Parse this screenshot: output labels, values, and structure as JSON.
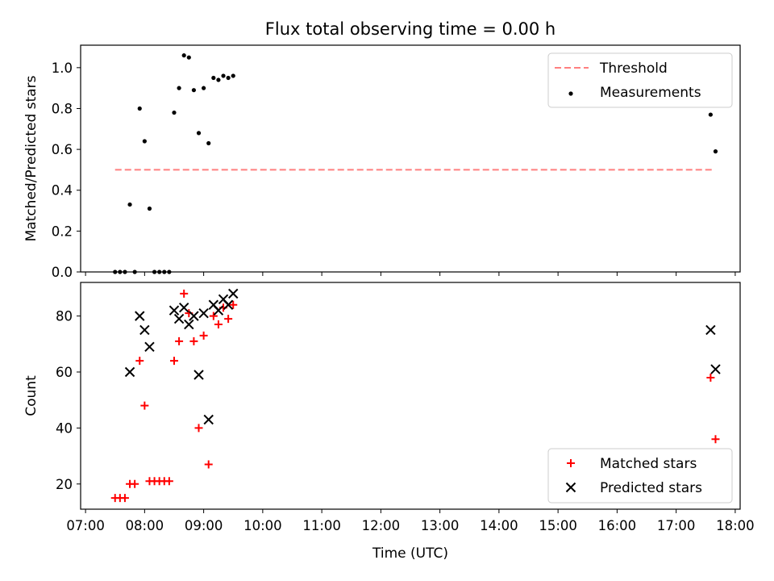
{
  "figure": {
    "title": "Flux total observing time = 0.00 h"
  },
  "chart_data": [
    {
      "type": "scatter",
      "title": "Flux total observing time = 0.00 h",
      "xlabel": "",
      "ylabel": "Matched/Predicted stars",
      "xlim": [
        "06:55",
        "18:05"
      ],
      "ylim": [
        0,
        1.11
      ],
      "yticks": [
        0.0,
        0.2,
        0.4,
        0.6,
        0.8,
        1.0
      ],
      "ytick_labels": [
        "0.0",
        "0.2",
        "0.4",
        "0.6",
        "0.8",
        "1.0"
      ],
      "legend_position": "top-right",
      "legend": [
        "Threshold",
        "Measurements"
      ],
      "threshold": {
        "name": "Threshold",
        "y": 0.5,
        "x_start": "07:30",
        "x_end": "17:38",
        "color": "#ff7f7f",
        "style": "dashed"
      },
      "series": [
        {
          "name": "Measurements",
          "marker": "dot",
          "color": "#000000",
          "points": [
            {
              "x": "07:30",
              "y": 0.0
            },
            {
              "x": "07:35",
              "y": 0.0
            },
            {
              "x": "07:40",
              "y": 0.0
            },
            {
              "x": "07:45",
              "y": 0.33
            },
            {
              "x": "07:50",
              "y": 0.0
            },
            {
              "x": "07:55",
              "y": 0.8
            },
            {
              "x": "08:00",
              "y": 0.64
            },
            {
              "x": "08:05",
              "y": 0.31
            },
            {
              "x": "08:10",
              "y": 0.0
            },
            {
              "x": "08:15",
              "y": 0.0
            },
            {
              "x": "08:20",
              "y": 0.0
            },
            {
              "x": "08:25",
              "y": 0.0
            },
            {
              "x": "08:30",
              "y": 0.78
            },
            {
              "x": "08:35",
              "y": 0.9
            },
            {
              "x": "08:40",
              "y": 1.06
            },
            {
              "x": "08:45",
              "y": 1.05
            },
            {
              "x": "08:50",
              "y": 0.89
            },
            {
              "x": "08:55",
              "y": 0.68
            },
            {
              "x": "09:00",
              "y": 0.9
            },
            {
              "x": "09:05",
              "y": 0.63
            },
            {
              "x": "09:10",
              "y": 0.95
            },
            {
              "x": "09:15",
              "y": 0.94
            },
            {
              "x": "09:20",
              "y": 0.96
            },
            {
              "x": "09:25",
              "y": 0.95
            },
            {
              "x": "09:30",
              "y": 0.96
            },
            {
              "x": "17:35",
              "y": 0.77
            },
            {
              "x": "17:40",
              "y": 0.59
            }
          ]
        }
      ]
    },
    {
      "type": "scatter",
      "title": "",
      "xlabel": "Time (UTC)",
      "ylabel": "Count",
      "xlim": [
        "06:55",
        "18:05"
      ],
      "ylim": [
        11,
        92
      ],
      "xticks": [
        "07:00",
        "08:00",
        "09:00",
        "10:00",
        "11:00",
        "12:00",
        "13:00",
        "14:00",
        "15:00",
        "16:00",
        "17:00",
        "18:00"
      ],
      "yticks": [
        20,
        40,
        60,
        80
      ],
      "ytick_labels": [
        "20",
        "40",
        "60",
        "80"
      ],
      "legend_position": "bottom-right",
      "legend": [
        "Matched stars",
        "Predicted stars"
      ],
      "series": [
        {
          "name": "Matched stars",
          "marker": "plus",
          "color": "#ff0000",
          "points": [
            {
              "x": "07:30",
              "y": 15
            },
            {
              "x": "07:35",
              "y": 15
            },
            {
              "x": "07:40",
              "y": 15
            },
            {
              "x": "07:45",
              "y": 20
            },
            {
              "x": "07:50",
              "y": 20
            },
            {
              "x": "07:55",
              "y": 64
            },
            {
              "x": "08:00",
              "y": 48
            },
            {
              "x": "08:05",
              "y": 21
            },
            {
              "x": "08:10",
              "y": 21
            },
            {
              "x": "08:15",
              "y": 21
            },
            {
              "x": "08:20",
              "y": 21
            },
            {
              "x": "08:25",
              "y": 21
            },
            {
              "x": "08:30",
              "y": 64
            },
            {
              "x": "08:35",
              "y": 71
            },
            {
              "x": "08:40",
              "y": 88
            },
            {
              "x": "08:45",
              "y": 81
            },
            {
              "x": "08:50",
              "y": 71
            },
            {
              "x": "08:55",
              "y": 40
            },
            {
              "x": "09:00",
              "y": 73
            },
            {
              "x": "09:05",
              "y": 27
            },
            {
              "x": "09:10",
              "y": 80
            },
            {
              "x": "09:15",
              "y": 77
            },
            {
              "x": "09:20",
              "y": 83
            },
            {
              "x": "09:25",
              "y": 79
            },
            {
              "x": "09:30",
              "y": 84
            },
            {
              "x": "17:35",
              "y": 58
            },
            {
              "x": "17:40",
              "y": 36
            }
          ]
        },
        {
          "name": "Predicted stars",
          "marker": "x",
          "color": "#000000",
          "points": [
            {
              "x": "07:45",
              "y": 60
            },
            {
              "x": "07:55",
              "y": 80
            },
            {
              "x": "08:00",
              "y": 75
            },
            {
              "x": "08:05",
              "y": 69
            },
            {
              "x": "08:30",
              "y": 82
            },
            {
              "x": "08:35",
              "y": 79
            },
            {
              "x": "08:40",
              "y": 83
            },
            {
              "x": "08:45",
              "y": 77
            },
            {
              "x": "08:50",
              "y": 80
            },
            {
              "x": "08:55",
              "y": 59
            },
            {
              "x": "09:00",
              "y": 81
            },
            {
              "x": "09:05",
              "y": 43
            },
            {
              "x": "09:10",
              "y": 84
            },
            {
              "x": "09:15",
              "y": 82
            },
            {
              "x": "09:20",
              "y": 86
            },
            {
              "x": "09:25",
              "y": 84
            },
            {
              "x": "09:30",
              "y": 88
            },
            {
              "x": "17:35",
              "y": 75
            },
            {
              "x": "17:40",
              "y": 61
            }
          ]
        }
      ]
    }
  ]
}
